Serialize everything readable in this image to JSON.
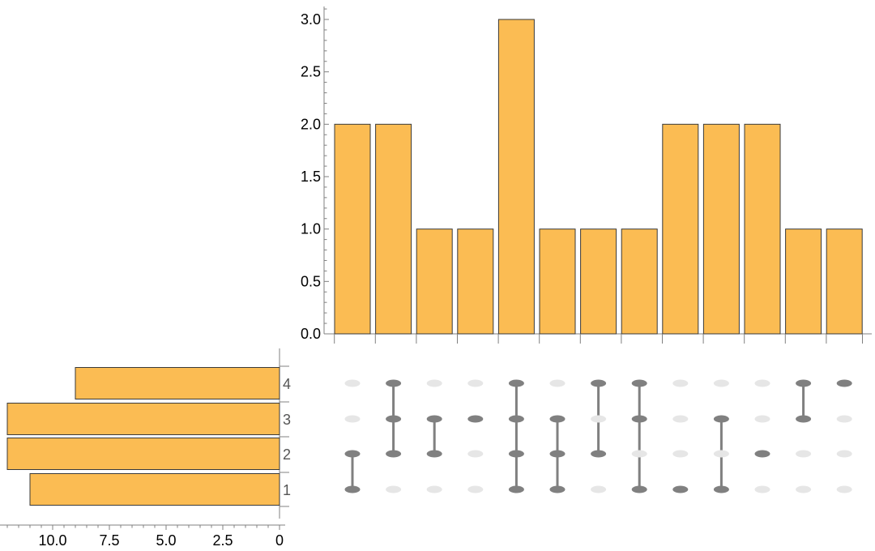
{
  "chart_data": {
    "type": "bar",
    "title": "",
    "colors": {
      "bar": "#fbbc53",
      "bar_edge": "#3a3a3a",
      "dot_active": "#808080",
      "dot_inactive": "#e6e6e6",
      "axis": "#808080"
    },
    "intersection_sizes": {
      "values": [
        2,
        2,
        1,
        1,
        3,
        1,
        1,
        1,
        2,
        2,
        2,
        1,
        1
      ],
      "ylim": [
        0,
        3.0
      ],
      "yticks": [
        "0.0",
        "0.5",
        "1.0",
        "1.5",
        "2.0",
        "2.5",
        "3.0"
      ],
      "ytick_values": [
        0,
        0.5,
        1.0,
        1.5,
        2.0,
        2.5,
        3.0
      ]
    },
    "set_sizes": {
      "sets": [
        "1",
        "2",
        "3",
        "4"
      ],
      "values": [
        11,
        12,
        12,
        9
      ],
      "xlim": [
        12.5,
        0
      ],
      "xticks": [
        "10.0",
        "7.5",
        "5.0",
        "2.5",
        "0"
      ],
      "xtick_values": [
        10,
        7.5,
        5,
        2.5,
        0
      ]
    },
    "membership_matrix": [
      [
        1,
        2
      ],
      [
        2,
        3,
        4
      ],
      [
        2,
        3
      ],
      [
        3
      ],
      [
        1,
        2,
        3,
        4
      ],
      [
        1,
        2,
        3
      ],
      [
        2,
        4
      ],
      [
        1,
        3,
        4
      ],
      [
        1
      ],
      [
        1,
        3
      ],
      [
        2
      ],
      [
        3,
        4
      ],
      [
        4
      ]
    ]
  }
}
